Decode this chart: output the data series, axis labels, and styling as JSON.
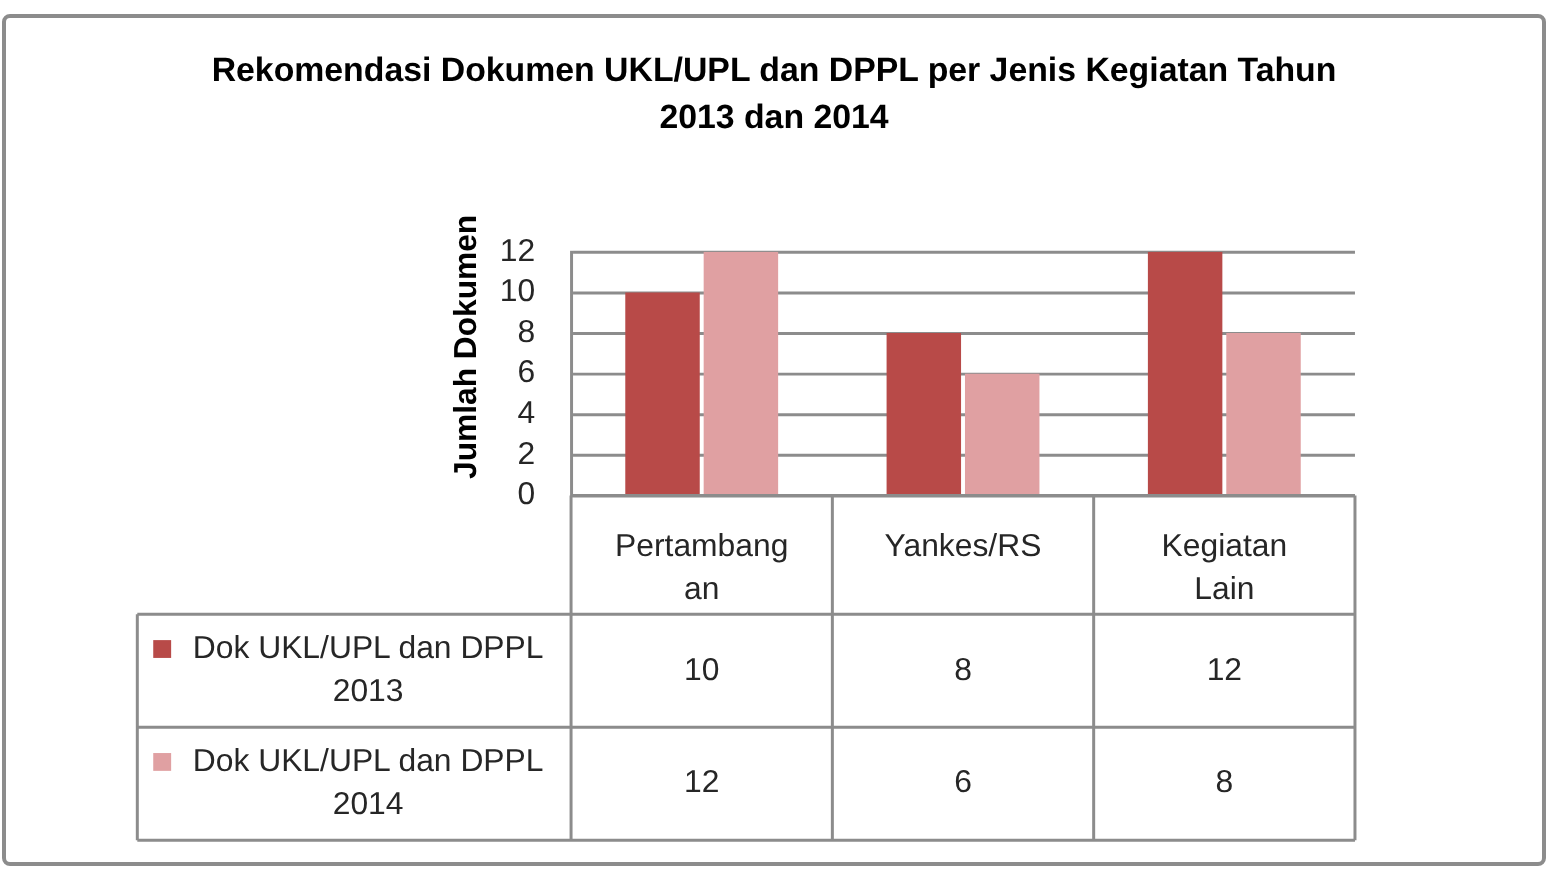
{
  "chart_data": {
    "type": "bar",
    "title": "Rekomendasi Dokumen UKL/UPL dan DPPL per Jenis Kegiatan Tahun 2013 dan 2014",
    "ylabel": "Jumlah Dokumen",
    "categories": [
      "Pertambangan",
      "Yankes/RS",
      "Kegiatan Lain"
    ],
    "series": [
      {
        "name": "Dok UKL/UPL dan DPPL 2013",
        "color": "#b84a48",
        "values": [
          10,
          8,
          12
        ]
      },
      {
        "name": "Dok UKL/UPL dan DPPL 2014",
        "color": "#e0a0a2",
        "values": [
          12,
          6,
          8
        ]
      }
    ],
    "ylim": [
      0,
      12
    ],
    "yticks": [
      0,
      2,
      4,
      6,
      8,
      10,
      12
    ],
    "grid": "y",
    "legend": "bottom",
    "data_labels": true
  }
}
